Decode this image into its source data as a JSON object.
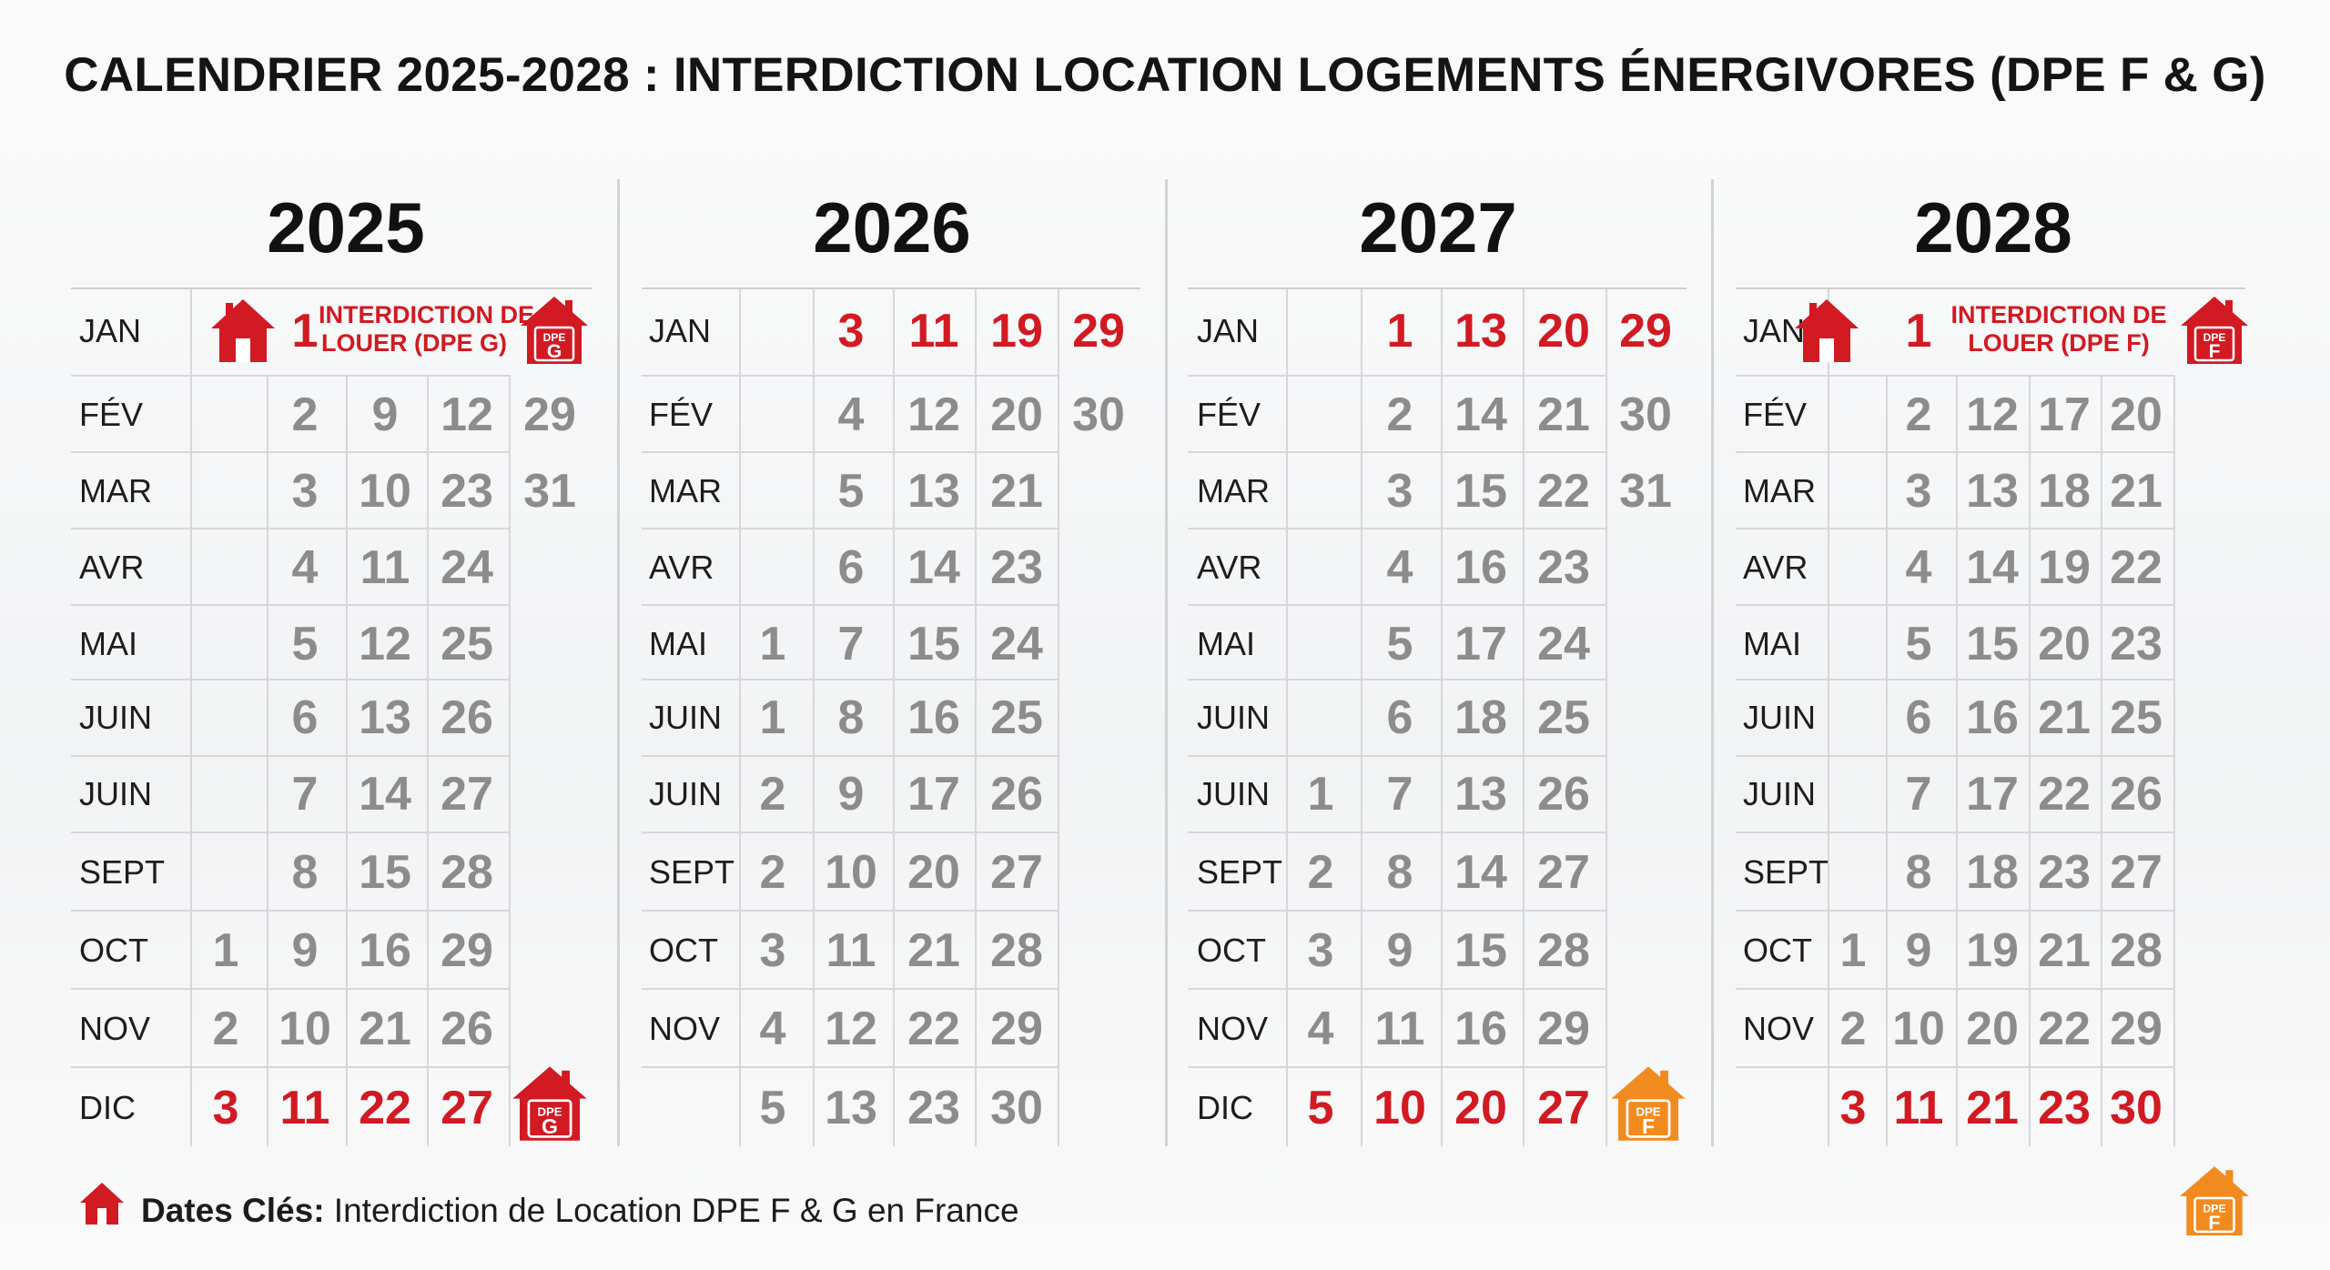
{
  "title": "CALENDRIER 2025-2028 : INTERDICTION LOCATION LOGEMENTS ÉNERGIVORES (DPE F & G)",
  "colors": {
    "red": "#d11a22",
    "orange": "#f28b1f",
    "grey": "#8c8c8c"
  },
  "years": [
    {
      "year": "2025",
      "months": [
        {
          "label": "JAN",
          "days": []
        },
        {
          "label": "FÉV",
          "days": [
            "",
            "2",
            "9",
            "12",
            "29"
          ]
        },
        {
          "label": "MAR",
          "days": [
            "",
            "3",
            "10",
            "23",
            "31"
          ]
        },
        {
          "label": "AVR",
          "days": [
            "",
            "4",
            "11",
            "24"
          ]
        },
        {
          "label": "MAI",
          "days": [
            "",
            "5",
            "12",
            "25"
          ]
        },
        {
          "label": "JUIN",
          "days": [
            "",
            "6",
            "13",
            "26"
          ]
        },
        {
          "label": "JUIN",
          "days": [
            "",
            "7",
            "14",
            "27"
          ]
        },
        {
          "label": "SEPT",
          "days": [
            "",
            "8",
            "15",
            "28"
          ]
        },
        {
          "label": "OCT",
          "days": [
            "1",
            "9",
            "16",
            "29"
          ]
        },
        {
          "label": "NOV",
          "days": [
            "2",
            "10",
            "21",
            "26"
          ]
        },
        {
          "label": "DIC",
          "days": [
            "3",
            "11",
            "22",
            "27"
          ]
        }
      ],
      "jan_day": "1",
      "ban_label": "INTERDICTION DE|LOUER (DPE G)",
      "jan_badge": {
        "line1": "DPE",
        "line2": "G",
        "color": "red"
      },
      "dec_badge": {
        "line1": "DPE",
        "line2": "G",
        "color": "red"
      }
    },
    {
      "year": "2026",
      "months": [
        {
          "label": "JAN",
          "days": [
            "",
            "3",
            "11",
            "19",
            "29"
          ]
        },
        {
          "label": "FÉV",
          "days": [
            "",
            "4",
            "12",
            "20",
            "30"
          ]
        },
        {
          "label": "MAR",
          "days": [
            "",
            "5",
            "13",
            "21"
          ]
        },
        {
          "label": "AVR",
          "days": [
            "",
            "6",
            "14",
            "23"
          ]
        },
        {
          "label": "MAI",
          "days": [
            "1",
            "7",
            "15",
            "24"
          ]
        },
        {
          "label": "JUIN",
          "days": [
            "1",
            "8",
            "16",
            "25"
          ]
        },
        {
          "label": "JUIN",
          "days": [
            "2",
            "9",
            "17",
            "26"
          ]
        },
        {
          "label": "SEPT",
          "days": [
            "2",
            "10",
            "20",
            "27"
          ]
        },
        {
          "label": "OCT",
          "days": [
            "3",
            "11",
            "21",
            "28"
          ]
        },
        {
          "label": "NOV",
          "days": [
            "4",
            "12",
            "22",
            "29"
          ]
        },
        {
          "label": "",
          "days": [
            "5",
            "13",
            "23",
            "30"
          ]
        }
      ]
    },
    {
      "year": "2027",
      "months": [
        {
          "label": "JAN",
          "days": [
            "",
            "1",
            "13",
            "20",
            "29"
          ]
        },
        {
          "label": "FÉV",
          "days": [
            "",
            "2",
            "14",
            "21",
            "30"
          ]
        },
        {
          "label": "MAR",
          "days": [
            "",
            "3",
            "15",
            "22",
            "31"
          ]
        },
        {
          "label": "AVR",
          "days": [
            "",
            "4",
            "16",
            "23"
          ]
        },
        {
          "label": "MAI",
          "days": [
            "",
            "5",
            "17",
            "24"
          ]
        },
        {
          "label": "JUIN",
          "days": [
            "",
            "6",
            "18",
            "25"
          ]
        },
        {
          "label": "JUIN",
          "days": [
            "1",
            "7",
            "13",
            "26"
          ]
        },
        {
          "label": "SEPT",
          "days": [
            "2",
            "8",
            "14",
            "27"
          ]
        },
        {
          "label": "OCT",
          "days": [
            "3",
            "9",
            "15",
            "28"
          ]
        },
        {
          "label": "NOV",
          "days": [
            "4",
            "11",
            "16",
            "29"
          ]
        },
        {
          "label": "DIC",
          "days": [
            "5",
            "10",
            "20",
            "27"
          ]
        }
      ],
      "dec_badge": {
        "line1": "DPE",
        "line2": "F",
        "color": "orange"
      }
    },
    {
      "year": "2028",
      "months": [
        {
          "label": "JAN",
          "days": []
        },
        {
          "label": "FÉV",
          "days": [
            "",
            "2",
            "12",
            "17",
            "20"
          ]
        },
        {
          "label": "MAR",
          "days": [
            "",
            "3",
            "13",
            "18",
            "21"
          ]
        },
        {
          "label": "AVR",
          "days": [
            "",
            "4",
            "14",
            "19",
            "22"
          ]
        },
        {
          "label": "MAI",
          "days": [
            "",
            "5",
            "15",
            "20",
            "23"
          ]
        },
        {
          "label": "JUIN",
          "days": [
            "",
            "6",
            "16",
            "21",
            "25"
          ]
        },
        {
          "label": "JUIN",
          "days": [
            "",
            "7",
            "17",
            "22",
            "26"
          ]
        },
        {
          "label": "SEPT",
          "days": [
            "",
            "8",
            "18",
            "23",
            "27"
          ]
        },
        {
          "label": "OCT",
          "days": [
            "1",
            "9",
            "19",
            "21",
            "28"
          ]
        },
        {
          "label": "NOV",
          "days": [
            "2",
            "10",
            "20",
            "22",
            "29"
          ]
        },
        {
          "label": "",
          "days": [
            "3",
            "11",
            "21",
            "23",
            "30"
          ]
        }
      ],
      "jan_day": "1",
      "ban_label": "INTERDICTION DE|LOUER (DPE F)",
      "jan_badge": {
        "line1": "DPE",
        "line2": "F",
        "color": "red"
      }
    }
  ],
  "red_rows": {
    "2025": [
      10
    ],
    "2026": [
      0
    ],
    "2027": [
      0,
      10
    ],
    "2028": [
      10
    ]
  },
  "footer": {
    "bold": "Dates Clés:",
    "text": " Interdiction de Location DPE F & G en France",
    "badge": {
      "line1": "DPE",
      "line2": "F",
      "color": "orange"
    }
  }
}
